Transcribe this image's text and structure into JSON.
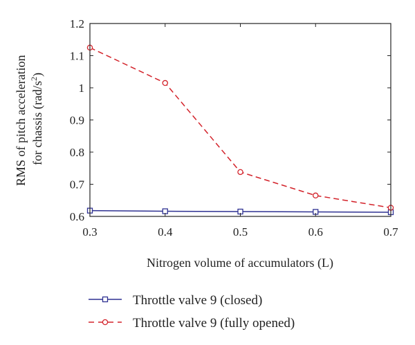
{
  "chart_data": {
    "type": "line",
    "xlabel": "Nitrogen volume of accumulators (L)",
    "ylabel_main": "RMS of pitch acceleration",
    "ylabel_line2_prefix": "for chassis (rad/s",
    "ylabel_superscript": "2",
    "ylabel_line2_suffix": ")",
    "xlim": [
      0.3,
      0.7
    ],
    "ylim": [
      0.6,
      1.2
    ],
    "xticks": [
      0.3,
      0.4,
      0.5,
      0.6,
      0.7
    ],
    "xtick_labels": [
      "0.3",
      "0.4",
      "0.5",
      "0.6",
      "0.7"
    ],
    "yticks": [
      0.6,
      0.7,
      0.8,
      0.9,
      1.0,
      1.1,
      1.2
    ],
    "ytick_labels": [
      "0.6",
      "0.7",
      "0.8",
      "0.9",
      "1",
      "1.1",
      "1.2"
    ],
    "grid": false,
    "legend_position": "bottom",
    "x": [
      0.3,
      0.4,
      0.5,
      0.6,
      0.7
    ],
    "series": [
      {
        "name": "Throttle valve 9 (closed)",
        "values": [
          0.618,
          0.616,
          0.615,
          0.614,
          0.613
        ],
        "color": "#2e3192",
        "line_style": "solid",
        "marker": "square"
      },
      {
        "name": "Throttle valve 9 (fully opened)",
        "values": [
          1.125,
          1.015,
          0.738,
          0.665,
          0.627
        ],
        "color": "#d3222a",
        "line_style": "dashed",
        "marker": "circle"
      }
    ]
  }
}
